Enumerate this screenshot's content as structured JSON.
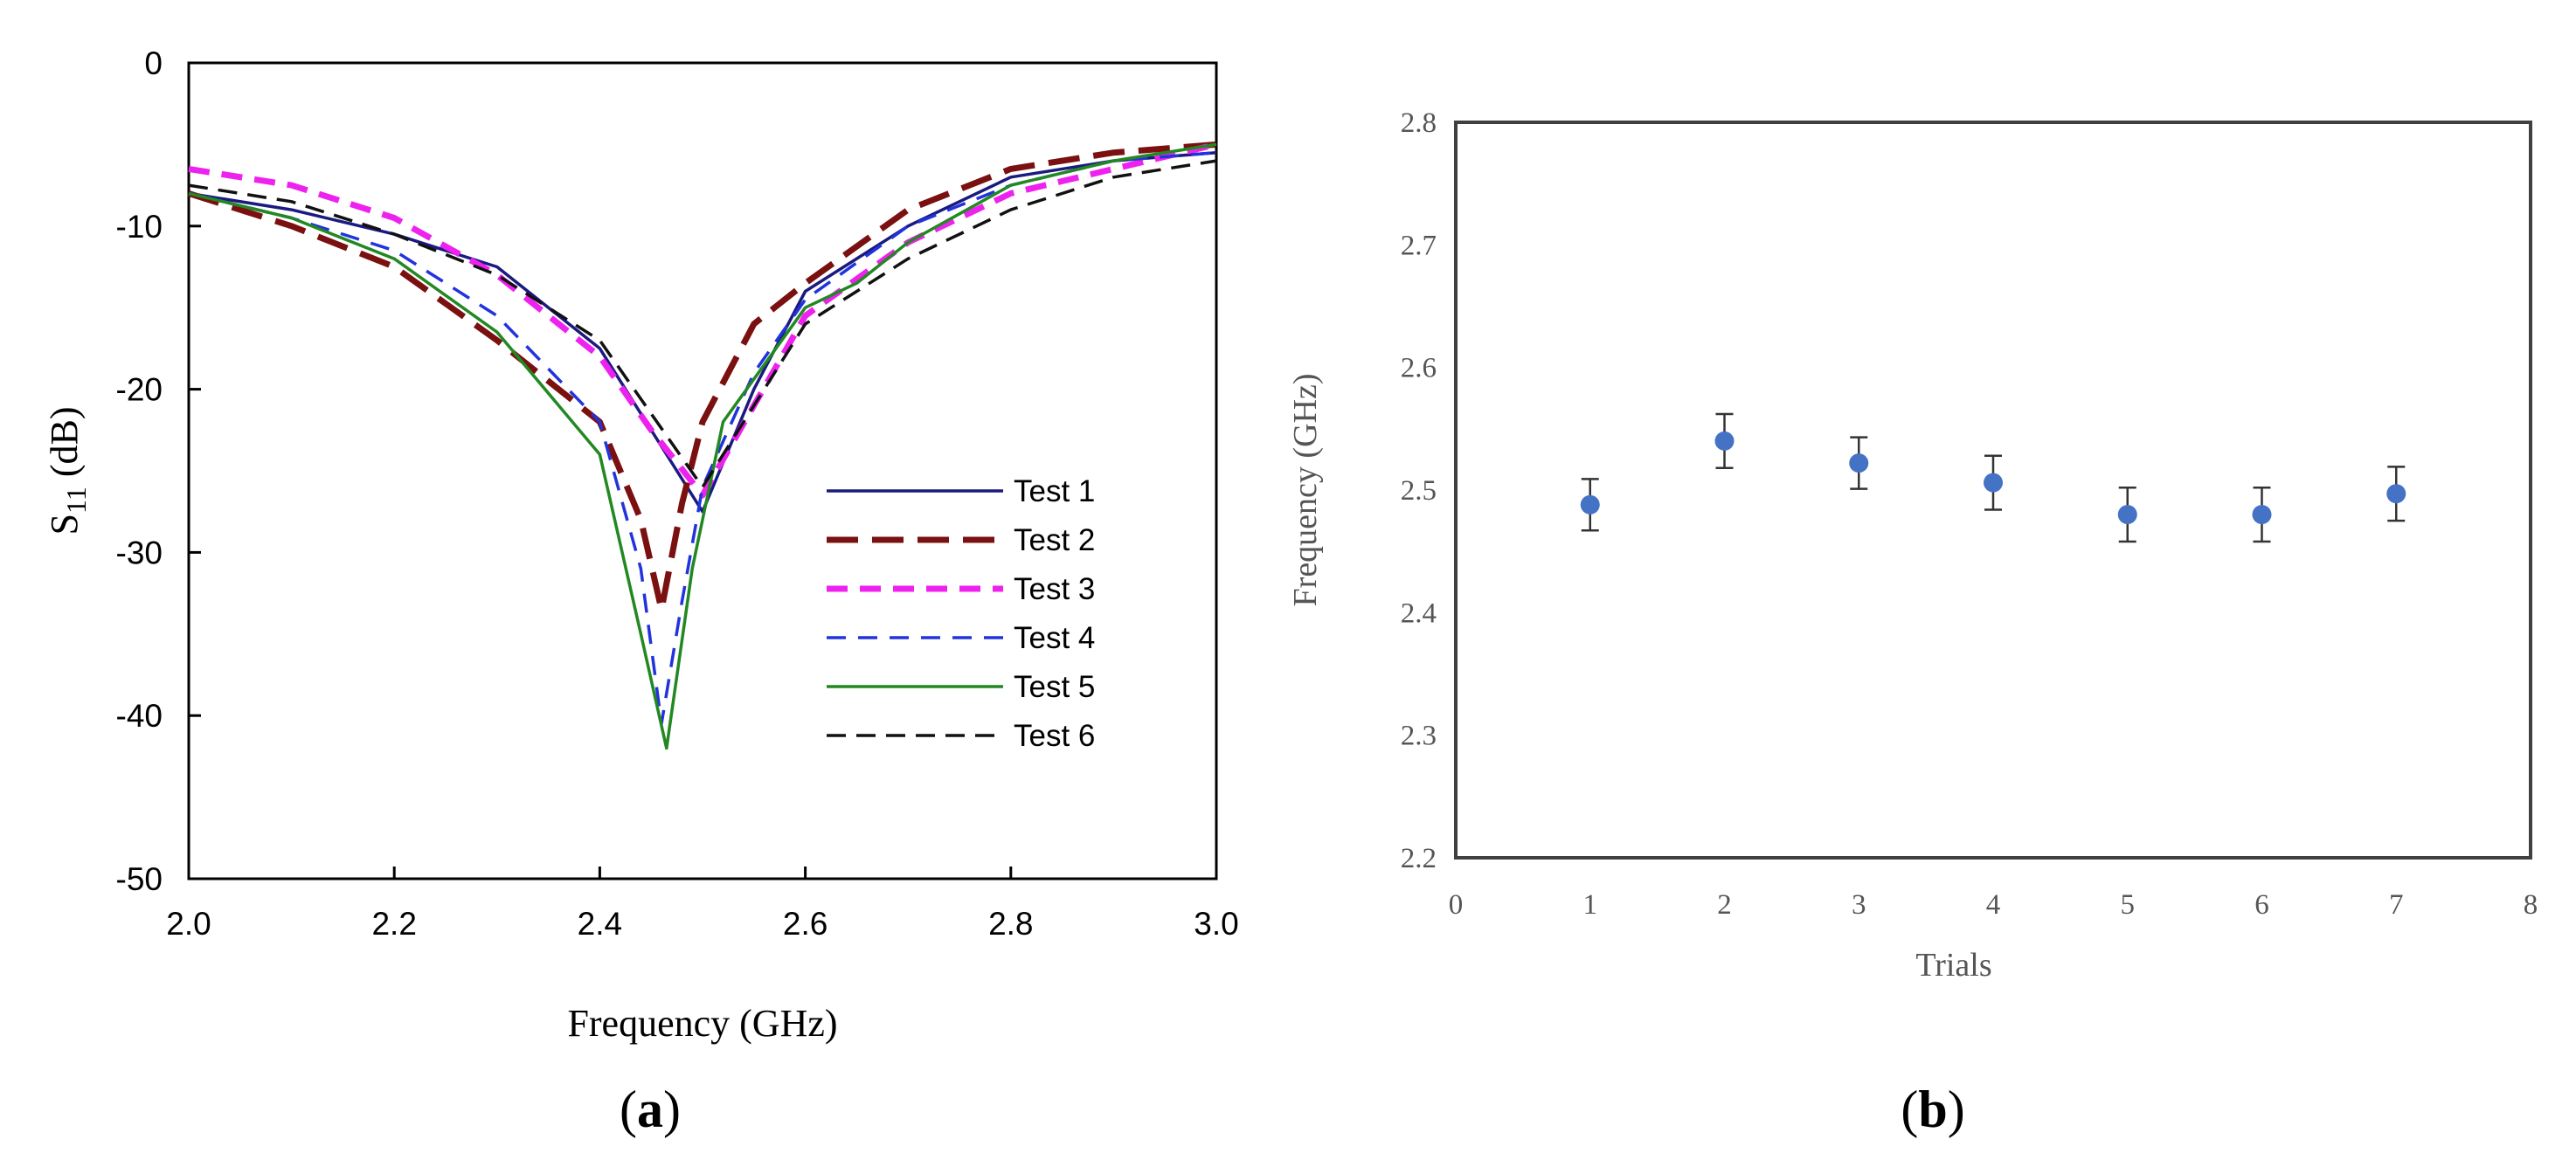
{
  "chart_data": [
    {
      "panel_label_open": "(",
      "panel_label_letter": "a",
      "panel_label_close": ")",
      "type": "line",
      "title": "",
      "xlabel": "Frequency (GHz)",
      "ylabel": "S",
      "ylabel_sub": "11",
      "ylabel_tail": " (dB)",
      "xlim": [
        2.0,
        3.0
      ],
      "ylim": [
        -50,
        0
      ],
      "xticks": [
        "2.0",
        "2.2",
        "2.4",
        "2.6",
        "2.8",
        "3.0"
      ],
      "yticks": [
        "0",
        "-10",
        "-20",
        "-30",
        "-40",
        "-50"
      ],
      "grid": false,
      "legend_position": "right",
      "colors": {
        "Test 1": "#1a1a80",
        "Test 2": "#7a1010",
        "Test 3": "#ee22ee",
        "Test 4": "#2233dd",
        "Test 5": "#228822",
        "Test 6": "#111111"
      },
      "series": [
        {
          "name": "Test 1",
          "x": [
            2.0,
            2.1,
            2.2,
            2.3,
            2.4,
            2.45,
            2.5,
            2.55,
            2.6,
            2.7,
            2.8,
            2.9,
            3.0
          ],
          "y": [
            -8,
            -9,
            -10.5,
            -12.5,
            -17.5,
            -22.5,
            -27.5,
            -20,
            -14,
            -10,
            -7,
            -6,
            -5.5
          ]
        },
        {
          "name": "Test 2",
          "x": [
            2.0,
            2.1,
            2.2,
            2.3,
            2.4,
            2.44,
            2.46,
            2.48,
            2.5,
            2.55,
            2.6,
            2.7,
            2.8,
            2.9,
            3.0
          ],
          "y": [
            -8,
            -10,
            -12.5,
            -17,
            -22,
            -28,
            -33.5,
            -27,
            -22,
            -16,
            -13.5,
            -9,
            -6.5,
            -5.5,
            -5
          ]
        },
        {
          "name": "Test 3",
          "x": [
            2.0,
            2.1,
            2.2,
            2.3,
            2.4,
            2.45,
            2.5,
            2.55,
            2.6,
            2.7,
            2.8,
            2.9,
            3.0
          ],
          "y": [
            -6.5,
            -7.5,
            -9.5,
            -13,
            -18,
            -22.5,
            -26.5,
            -21,
            -15.5,
            -11,
            -8,
            -6.5,
            -5
          ]
        },
        {
          "name": "Test 4",
          "x": [
            2.0,
            2.1,
            2.2,
            2.3,
            2.4,
            2.44,
            2.46,
            2.48,
            2.5,
            2.55,
            2.6,
            2.7,
            2.8,
            2.9,
            3.0
          ],
          "y": [
            -8,
            -9.5,
            -11.5,
            -15.5,
            -22,
            -31,
            -40.5,
            -33,
            -26,
            -19,
            -14.5,
            -10,
            -7.5,
            -6,
            -5.5
          ]
        },
        {
          "name": "Test 5",
          "x": [
            2.0,
            2.1,
            2.2,
            2.3,
            2.4,
            2.44,
            2.465,
            2.49,
            2.52,
            2.6,
            2.65,
            2.7,
            2.8,
            2.9,
            3.0
          ],
          "y": [
            -8,
            -9.5,
            -12,
            -16.5,
            -24,
            -35,
            -42,
            -31,
            -22,
            -15,
            -13.5,
            -11,
            -7.5,
            -6,
            -5
          ]
        },
        {
          "name": "Test 6",
          "x": [
            2.0,
            2.1,
            2.2,
            2.3,
            2.4,
            2.45,
            2.5,
            2.55,
            2.6,
            2.7,
            2.8,
            2.9,
            3.0
          ],
          "y": [
            -7.5,
            -8.5,
            -10.5,
            -13,
            -17,
            -21.5,
            -26,
            -21,
            -16,
            -12,
            -9,
            -7,
            -6
          ]
        }
      ]
    },
    {
      "panel_label_open": "(",
      "panel_label_letter": "b",
      "panel_label_close": ")",
      "type": "scatter",
      "title": "",
      "xlabel": "Trials",
      "ylabel": "Frequency (GHz)",
      "xlim": [
        0,
        8
      ],
      "ylim": [
        2.2,
        2.8
      ],
      "xticks": [
        "0",
        "1",
        "2",
        "3",
        "4",
        "5",
        "6",
        "7",
        "8"
      ],
      "yticks": [
        "2.2",
        "2.3",
        "2.4",
        "2.5",
        "2.6",
        "2.7",
        "2.8"
      ],
      "grid": false,
      "marker_color": "#4472c4",
      "errorbar_color": "#333333",
      "x": [
        1,
        2,
        3,
        4,
        5,
        6,
        7
      ],
      "y": [
        2.488,
        2.54,
        2.522,
        2.506,
        2.48,
        2.48,
        2.497
      ],
      "error": [
        0.021,
        0.022,
        0.021,
        0.022,
        0.022,
        0.022,
        0.022
      ]
    }
  ]
}
